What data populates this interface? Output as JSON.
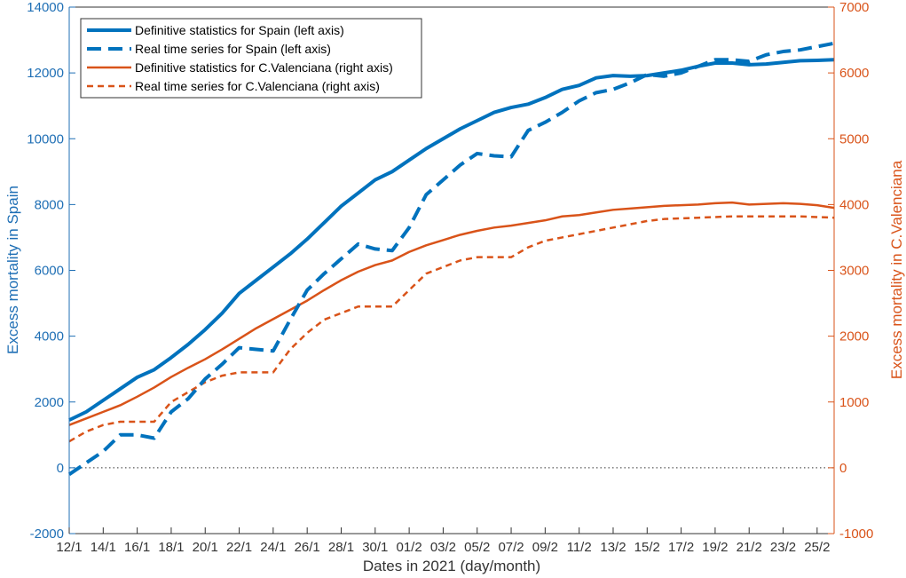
{
  "chart_data": {
    "type": "line",
    "xlabel": "Dates in 2021 (day/month)",
    "ylabel_left": "Excess mortality in Spain",
    "ylabel_right": "Excess mortality in C.Valenciana",
    "ylim_left": [
      -2000,
      14000
    ],
    "ylim_right": [
      -1000,
      7000
    ],
    "yticks_left": [
      "-2000",
      "0",
      "2000",
      "4000",
      "6000",
      "8000",
      "10000",
      "12000",
      "14000"
    ],
    "yticks_right": [
      "-1000",
      "0",
      "1000",
      "2000",
      "3000",
      "4000",
      "5000",
      "6000",
      "7000"
    ],
    "xlim": [
      0,
      45
    ],
    "x_tick_positions": [
      0,
      2,
      4,
      6,
      8,
      10,
      12,
      14,
      16,
      18,
      20,
      22,
      24,
      26,
      28,
      30,
      32,
      34,
      36,
      38,
      40,
      42,
      44
    ],
    "x_tick_labels": [
      "12/1",
      "14/1",
      "16/1",
      "18/1",
      "20/1",
      "22/1",
      "24/1",
      "26/1",
      "28/1",
      "30/1",
      "01/2",
      "03/2",
      "05/2",
      "07/2",
      "09/2",
      "11/2",
      "13/2",
      "15/2",
      "17/2",
      "19/2",
      "21/2",
      "23/2",
      "25/2"
    ],
    "zero_line": "dotted",
    "legend_position": "top-left",
    "colors": {
      "spain": "#0072bd",
      "valenciana": "#d95319"
    },
    "series": [
      {
        "name": "Definitive statistics for Spain (left axis)",
        "axis": "left",
        "style": "solid",
        "color": "#0072bd",
        "x": [
          0,
          1,
          2,
          3,
          4,
          5,
          6,
          7,
          8,
          9,
          10,
          11,
          12,
          13,
          14,
          15,
          16,
          17,
          18,
          19,
          20,
          21,
          22,
          23,
          24,
          25,
          26,
          27,
          28,
          29,
          30,
          31,
          32,
          33,
          34,
          35,
          36,
          37,
          38,
          39,
          40,
          41,
          42,
          43,
          44,
          45
        ],
        "y": [
          1450,
          1700,
          2050,
          2400,
          2750,
          2980,
          3350,
          3750,
          4200,
          4700,
          5300,
          5700,
          6100,
          6500,
          6950,
          7450,
          7950,
          8350,
          8750,
          9000,
          9350,
          9700,
          10000,
          10300,
          10550,
          10800,
          10950,
          11050,
          11250,
          11500,
          11620,
          11850,
          11920,
          11900,
          11920,
          12000,
          12080,
          12200,
          12300,
          12300,
          12250,
          12270,
          12320,
          12370,
          12380,
          12400
        ]
      },
      {
        "name": "Real time series for Spain (left axis)",
        "axis": "left",
        "style": "dashed",
        "color": "#0072bd",
        "x": [
          0,
          1,
          2,
          3,
          4,
          5,
          6,
          7,
          8,
          9,
          10,
          11,
          12,
          13,
          14,
          15,
          16,
          17,
          18,
          19,
          20,
          21,
          22,
          23,
          24,
          25,
          26,
          27,
          28,
          29,
          30,
          31,
          32,
          33,
          34,
          35,
          36,
          37,
          38,
          39,
          40,
          41,
          42,
          43,
          44,
          45
        ],
        "y": [
          -200,
          150,
          500,
          1000,
          1000,
          900,
          1700,
          2100,
          2700,
          3150,
          3650,
          3600,
          3550,
          4500,
          5400,
          5900,
          6350,
          6800,
          6650,
          6600,
          7300,
          8300,
          8750,
          9200,
          9550,
          9480,
          9450,
          10250,
          10500,
          10800,
          11150,
          11400,
          11500,
          11700,
          11950,
          11900,
          12000,
          12200,
          12400,
          12400,
          12350,
          12550,
          12650,
          12700,
          12800,
          12900
        ]
      },
      {
        "name": "Definitive statistics for C.Valenciana (right axis)",
        "axis": "right",
        "style": "solid",
        "color": "#d95319",
        "x": [
          0,
          1,
          2,
          3,
          4,
          5,
          6,
          7,
          8,
          9,
          10,
          11,
          12,
          13,
          14,
          15,
          16,
          17,
          18,
          19,
          20,
          21,
          22,
          23,
          24,
          25,
          26,
          27,
          28,
          29,
          30,
          31,
          32,
          33,
          34,
          35,
          36,
          37,
          38,
          39,
          40,
          41,
          42,
          43,
          44,
          45
        ],
        "y": [
          650,
          750,
          850,
          950,
          1080,
          1220,
          1380,
          1520,
          1650,
          1800,
          1960,
          2120,
          2260,
          2400,
          2540,
          2700,
          2850,
          2980,
          3080,
          3150,
          3280,
          3380,
          3460,
          3540,
          3600,
          3650,
          3680,
          3720,
          3760,
          3820,
          3840,
          3880,
          3920,
          3940,
          3960,
          3980,
          3990,
          4000,
          4020,
          4030,
          4000,
          4010,
          4020,
          4010,
          3990,
          3950
        ]
      },
      {
        "name": "Real time series for C.Valenciana (right axis)",
        "axis": "right",
        "style": "dashed",
        "color": "#d95319",
        "x": [
          0,
          1,
          2,
          3,
          4,
          5,
          6,
          7,
          8,
          9,
          10,
          11,
          12,
          13,
          14,
          15,
          16,
          17,
          18,
          19,
          20,
          21,
          22,
          23,
          24,
          25,
          26,
          27,
          28,
          29,
          30,
          31,
          32,
          33,
          34,
          35,
          36,
          37,
          38,
          39,
          40,
          41,
          42,
          43,
          44,
          45
        ],
        "y": [
          400,
          550,
          650,
          700,
          700,
          700,
          1000,
          1150,
          1300,
          1400,
          1450,
          1450,
          1450,
          1800,
          2050,
          2250,
          2350,
          2450,
          2450,
          2450,
          2700,
          2950,
          3050,
          3150,
          3200,
          3200,
          3200,
          3350,
          3450,
          3500,
          3550,
          3600,
          3650,
          3700,
          3750,
          3780,
          3790,
          3800,
          3810,
          3820,
          3820,
          3820,
          3820,
          3820,
          3810,
          3800
        ]
      }
    ]
  }
}
